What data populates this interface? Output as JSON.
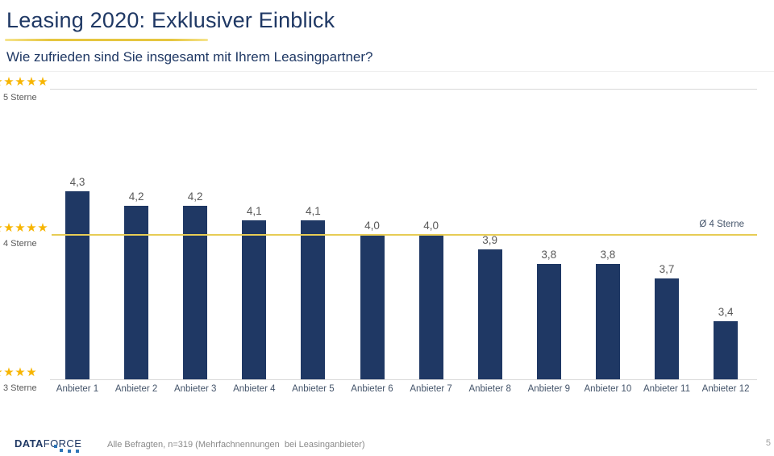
{
  "header": {
    "title": "Leasing 2020: Exklusiver Einblick",
    "subtitle": "Wie zufrieden sind Sie insgesamt mit Ihrem Leasingpartner?"
  },
  "chart_data": {
    "type": "bar",
    "title": "Wie zufrieden sind Sie insgesamt mit Ihrem Leasingpartner?",
    "categories": [
      "Anbieter 1",
      "Anbieter 2",
      "Anbieter 3",
      "Anbieter 4",
      "Anbieter 5",
      "Anbieter 6",
      "Anbieter 7",
      "Anbieter 8",
      "Anbieter 9",
      "Anbieter 10",
      "Anbieter 11",
      "Anbieter 12"
    ],
    "values": [
      4.3,
      4.2,
      4.2,
      4.1,
      4.1,
      4.0,
      4.0,
      3.9,
      3.8,
      3.8,
      3.7,
      3.4
    ],
    "value_labels": [
      "4,3",
      "4,2",
      "4,2",
      "4,1",
      "4,1",
      "4,0",
      "4,0",
      "3,9",
      "3,8",
      "3,8",
      "3,7",
      "3,4"
    ],
    "xlabel": "",
    "ylabel": "Sterne",
    "ylim": [
      3,
      5
    ],
    "grid": "horizontal gridlines at 3 and 5 stars, gold reference line at 4 stars",
    "legend": "none",
    "bar_color": "#1F3864",
    "star_char": "★",
    "star_color": "#F7B500",
    "reference_line": {
      "value": 4,
      "label": "Ø 4 Sterne",
      "color": "#E7CC55"
    },
    "y_axis": {
      "rows": [
        {
          "value": 5,
          "label": "5 Sterne",
          "visible_full_stars": 4,
          "has_clipped_star": true
        },
        {
          "value": 4,
          "label": "4 Sterne",
          "visible_full_stars": 4,
          "has_clipped_star": true
        },
        {
          "value": 3,
          "label": "3 Sterne",
          "visible_full_stars": 3,
          "has_clipped_star": true
        }
      ]
    }
  },
  "footer": {
    "logo_bold": "DATA",
    "logo_light": "FORCE",
    "note": "Alle Befragten, n=319 (Mehrfachnennungen  bei Leasinganbieter)",
    "page_number": "5"
  },
  "colors": {
    "accent_navy": "#1F3864",
    "accent_gold": "#E6C63F",
    "star_gold": "#F7B500",
    "gridline_gray": "#D9D9D9",
    "text_gray": "#595959"
  }
}
